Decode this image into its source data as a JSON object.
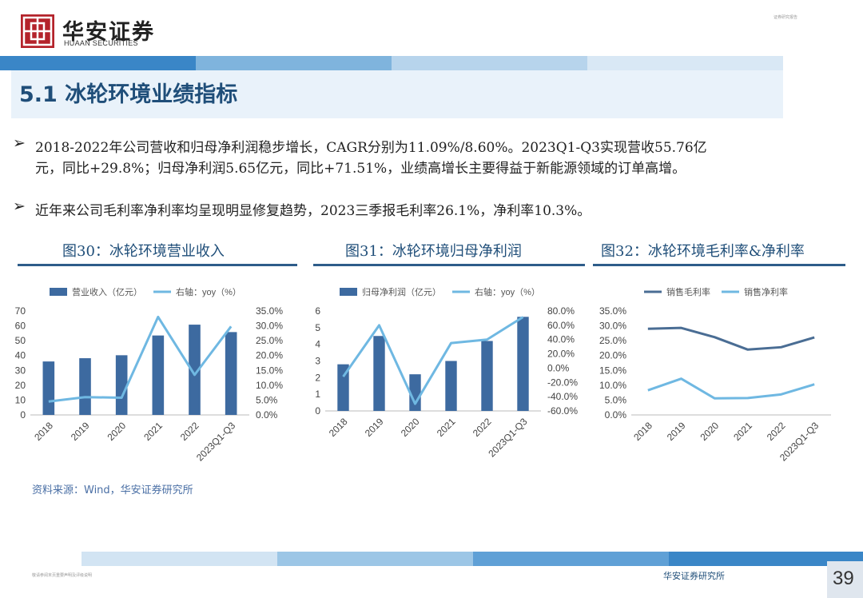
{
  "header": {
    "logo_cn": "华安证券",
    "logo_en": "HUAAN SECURITIES",
    "doc_tag": "证券研究报告"
  },
  "section": {
    "title": "5.1 冰轮环境业绩指标"
  },
  "bullets": [
    {
      "lines": [
        "2018-2022年公司营收和归母净利润稳步增长，CAGR分别为11.09%/8.60%。2023Q1-Q3实现营收55.76亿",
        "元，同比+29.8%；归母净利润5.65亿元，同比+71.51%，业绩高增长主要得益于新能源领域的订单高增。"
      ]
    },
    {
      "lines": [
        "近年来公司毛利率净利率均呈现明显修复趋势，2023三季报毛利率26.1%，净利率10.3%。"
      ]
    }
  ],
  "bullet_marker": "➢",
  "source": "资料来源：Wind，华安证券研究所",
  "footer": {
    "disclaimer": "敬请参阅末页重要声明及评级说明",
    "company": "华安证券研究所",
    "page": "39"
  },
  "colors": {
    "bar": "#3d6aa0",
    "line": "#6fb8e2",
    "title": "#1f4e79",
    "dark_line": "#4a6d94",
    "logo": "#b4232b"
  },
  "chart_data": [
    {
      "type": "bar",
      "title": "图30：冰轮环境营业收入",
      "categories": [
        "2018",
        "2019",
        "2020",
        "2021",
        "2022",
        "2023Q1-Q3"
      ],
      "series": [
        {
          "name": "营业收入（亿元）",
          "type": "bar",
          "axis": "left",
          "values": [
            36,
            38.2,
            40.2,
            53.5,
            60.8,
            55.8
          ]
        },
        {
          "name": "右轴：yoy（%）",
          "type": "line",
          "axis": "right",
          "values": [
            4.5,
            6.0,
            5.8,
            33.0,
            13.5,
            29.8
          ]
        }
      ],
      "yleft": {
        "min": 0,
        "max": 70,
        "ticks": [
          "0",
          "10",
          "20",
          "30",
          "40",
          "50",
          "60",
          "70"
        ]
      },
      "yright": {
        "min": 0,
        "max": 35,
        "ticks": [
          "0.0%",
          "5.0%",
          "10.0%",
          "15.0%",
          "20.0%",
          "25.0%",
          "30.0%",
          "35.0%"
        ]
      },
      "legend": "top"
    },
    {
      "type": "bar",
      "title": "图31：冰轮环境归母净利润",
      "categories": [
        "2018",
        "2019",
        "2020",
        "2021",
        "2022",
        "2023Q1-Q3"
      ],
      "series": [
        {
          "name": "归母净利润（亿元）",
          "type": "bar",
          "axis": "left",
          "values": [
            2.8,
            4.5,
            2.2,
            3.0,
            4.2,
            5.65
          ]
        },
        {
          "name": "右轴：yoy（%）",
          "type": "line",
          "axis": "right",
          "values": [
            -12,
            60,
            -50,
            35,
            40,
            71.5
          ]
        }
      ],
      "yleft": {
        "min": 0,
        "max": 6,
        "ticks": [
          "0",
          "1",
          "2",
          "3",
          "4",
          "5",
          "6"
        ]
      },
      "yright": {
        "min": -60,
        "max": 80,
        "ticks": [
          "-60.0%",
          "-40.0%",
          "-20.0%",
          "0.0%",
          "20.0%",
          "40.0%",
          "60.0%",
          "80.0%"
        ]
      },
      "legend": "top"
    },
    {
      "type": "line",
      "title": "图32：冰轮环境毛利率&净利率",
      "categories": [
        "2018",
        "2019",
        "2020",
        "2021",
        "2022",
        "2023Q1-Q3"
      ],
      "series": [
        {
          "name": "销售毛利率",
          "type": "line",
          "values": [
            29.0,
            29.3,
            26.2,
            22.0,
            22.8,
            26.1
          ],
          "color": "#4a6d94"
        },
        {
          "name": "销售净利率",
          "type": "line",
          "values": [
            8.3,
            12.2,
            5.6,
            5.7,
            6.9,
            10.3
          ],
          "color": "#6fb8e2"
        }
      ],
      "yleft": {
        "min": 0,
        "max": 35,
        "ticks": [
          "0.0%",
          "5.0%",
          "10.0%",
          "15.0%",
          "20.0%",
          "25.0%",
          "30.0%",
          "35.0%"
        ]
      },
      "legend": "top"
    }
  ]
}
